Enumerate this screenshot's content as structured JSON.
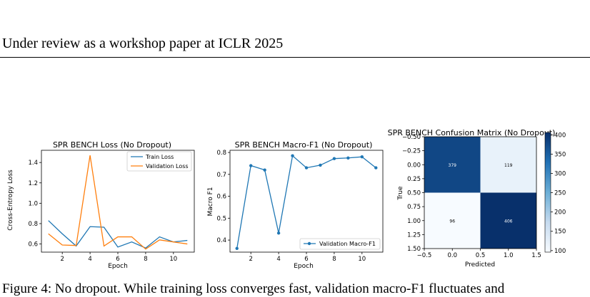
{
  "header": {
    "text": "Under review as a workshop paper at ICLR 2025"
  },
  "caption": {
    "text": "Figure 4: No dropout. While training loss converges fast, validation macro-F1 fluctuates and"
  },
  "chart_data": [
    {
      "type": "line",
      "title": "SPR BENCH Loss (No Dropout)",
      "xlabel": "Epoch",
      "ylabel": "Cross-Entropy Loss",
      "x": [
        1,
        2,
        3,
        4,
        5,
        6,
        7,
        8,
        9,
        10,
        11
      ],
      "xticks": [
        2,
        4,
        6,
        8,
        10
      ],
      "yticks": [
        0.6,
        0.8,
        1.0,
        1.2,
        1.4
      ],
      "ylim": [
        0.52,
        1.52
      ],
      "legend": "top-right",
      "series": [
        {
          "name": "Train Loss",
          "color": "#1f77b4",
          "values": [
            0.83,
            0.7,
            0.58,
            0.77,
            0.765,
            0.57,
            0.62,
            0.56,
            0.67,
            0.62,
            0.635
          ]
        },
        {
          "name": "Validation Loss",
          "color": "#ff7f0e",
          "values": [
            0.7,
            0.59,
            0.585,
            1.47,
            0.58,
            0.67,
            0.67,
            0.55,
            0.64,
            0.62,
            0.6
          ]
        }
      ]
    },
    {
      "type": "line",
      "title": "SPR BENCH Macro-F1 (No Dropout)",
      "xlabel": "Epoch",
      "ylabel": "Macro F1",
      "x": [
        1,
        2,
        3,
        4,
        5,
        6,
        7,
        8,
        9,
        10,
        11
      ],
      "xticks": [
        2,
        4,
        6,
        8,
        10
      ],
      "yticks": [
        0.4,
        0.5,
        0.6,
        0.7,
        0.8
      ],
      "ylim": [
        0.345,
        0.81
      ],
      "legend": "bottom-right",
      "series": [
        {
          "name": "Validation Macro-F1",
          "color": "#1f77b4",
          "markers": true,
          "values": [
            0.362,
            0.74,
            0.72,
            0.432,
            0.785,
            0.73,
            0.742,
            0.772,
            0.775,
            0.78,
            0.73
          ]
        }
      ]
    },
    {
      "type": "heatmap",
      "title": "SPR BENCH Confusion Matrix (No Dropout)",
      "xlabel": "Predicted",
      "ylabel": "True",
      "xticks": [
        "−0.5",
        "0.0",
        "0.5",
        "1.0",
        "1.5"
      ],
      "yticks": [
        "−0.50",
        "−0.25",
        "0.00",
        "0.25",
        "0.50",
        "0.75",
        "1.00",
        "1.25",
        "1.50"
      ],
      "values": [
        [
          379,
          119
        ],
        [
          96,
          406
        ]
      ],
      "colorbar": {
        "ticks": [
          100,
          150,
          200,
          250,
          300,
          350,
          400
        ],
        "range": [
          96,
          406
        ],
        "colormap": "Blues"
      }
    }
  ]
}
